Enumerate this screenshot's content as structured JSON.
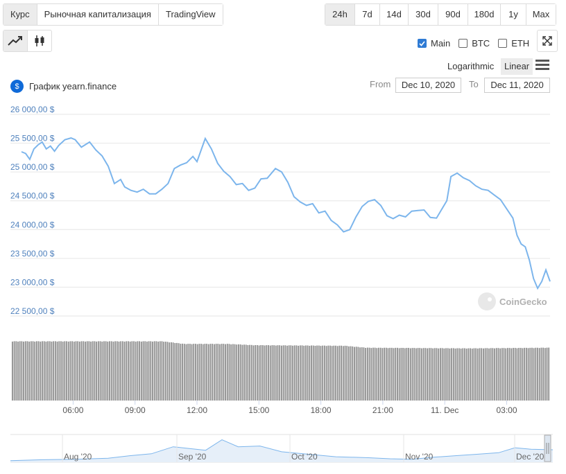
{
  "tabs": [
    "Курс",
    "Рыночная капитализация",
    "TradingView"
  ],
  "ranges": [
    "24h",
    "7d",
    "14d",
    "30d",
    "90d",
    "180d",
    "1y",
    "Max"
  ],
  "checkboxes": {
    "main": "Main",
    "btc": "BTC",
    "eth": "ETH"
  },
  "scale": {
    "log": "Logarithmic",
    "linear": "Linear"
  },
  "chart_title": "График yearn.finance",
  "logo_glyph": "$",
  "date_range": {
    "from_label": "From",
    "from": "Dec 10, 2020",
    "to_label": "To",
    "to": "Dec 11, 2020"
  },
  "watermark": "CoinGecko",
  "colors": {
    "line": "#7cb5ec",
    "grid": "#e6e6e6",
    "axis_text": "#4f81bd",
    "volume": "#8c8c8c",
    "active_bg": "#ececec",
    "check": "#2f7bd4"
  },
  "chart_data": {
    "type": "line",
    "currency_suffix": " $",
    "yticks": [
      "26 000,00 $",
      "25 500,00 $",
      "25 000,00 $",
      "24 500,00 $",
      "24 000,00 $",
      "23 500,00 $",
      "23 000,00 $",
      "22 500,00 $"
    ],
    "ylim": [
      22500,
      26000
    ],
    "xticks": [
      "06:00",
      "09:00",
      "12:00",
      "15:00",
      "18:00",
      "21:00",
      "11. Dec",
      "03:00"
    ],
    "x_start_hour": 3.5,
    "x_end_hour": 27.85,
    "price_points": [
      [
        3.5,
        25350
      ],
      [
        3.7,
        25320
      ],
      [
        3.9,
        25220
      ],
      [
        4.1,
        25400
      ],
      [
        4.3,
        25470
      ],
      [
        4.5,
        25520
      ],
      [
        4.7,
        25400
      ],
      [
        4.9,
        25450
      ],
      [
        5.1,
        25360
      ],
      [
        5.3,
        25460
      ],
      [
        5.6,
        25560
      ],
      [
        5.9,
        25590
      ],
      [
        6.1,
        25560
      ],
      [
        6.4,
        25430
      ],
      [
        6.8,
        25520
      ],
      [
        7.1,
        25380
      ],
      [
        7.4,
        25280
      ],
      [
        7.7,
        25100
      ],
      [
        8.0,
        24800
      ],
      [
        8.3,
        24870
      ],
      [
        8.5,
        24740
      ],
      [
        8.8,
        24680
      ],
      [
        9.1,
        24650
      ],
      [
        9.4,
        24700
      ],
      [
        9.7,
        24620
      ],
      [
        10.0,
        24620
      ],
      [
        10.3,
        24700
      ],
      [
        10.6,
        24800
      ],
      [
        10.9,
        25060
      ],
      [
        11.2,
        25120
      ],
      [
        11.5,
        25160
      ],
      [
        11.8,
        25270
      ],
      [
        12.0,
        25180
      ],
      [
        12.4,
        25580
      ],
      [
        12.7,
        25400
      ],
      [
        13.0,
        25150
      ],
      [
        13.3,
        25010
      ],
      [
        13.6,
        24920
      ],
      [
        13.9,
        24780
      ],
      [
        14.2,
        24800
      ],
      [
        14.5,
        24680
      ],
      [
        14.8,
        24720
      ],
      [
        15.1,
        24880
      ],
      [
        15.4,
        24890
      ],
      [
        15.8,
        25060
      ],
      [
        16.1,
        25000
      ],
      [
        16.4,
        24820
      ],
      [
        16.7,
        24570
      ],
      [
        17.0,
        24480
      ],
      [
        17.3,
        24420
      ],
      [
        17.6,
        24450
      ],
      [
        17.9,
        24290
      ],
      [
        18.2,
        24320
      ],
      [
        18.5,
        24160
      ],
      [
        18.8,
        24080
      ],
      [
        19.1,
        23960
      ],
      [
        19.4,
        24000
      ],
      [
        19.7,
        24220
      ],
      [
        20.0,
        24400
      ],
      [
        20.3,
        24490
      ],
      [
        20.6,
        24520
      ],
      [
        20.9,
        24420
      ],
      [
        21.2,
        24240
      ],
      [
        21.5,
        24190
      ],
      [
        21.8,
        24250
      ],
      [
        22.1,
        24220
      ],
      [
        22.4,
        24320
      ],
      [
        22.7,
        24330
      ],
      [
        23.0,
        24340
      ],
      [
        23.3,
        24210
      ],
      [
        23.6,
        24200
      ],
      [
        23.9,
        24380
      ],
      [
        24.1,
        24500
      ],
      [
        24.3,
        24920
      ],
      [
        24.6,
        24980
      ],
      [
        24.9,
        24900
      ],
      [
        25.2,
        24850
      ],
      [
        25.5,
        24760
      ],
      [
        25.8,
        24700
      ],
      [
        26.1,
        24680
      ],
      [
        26.4,
        24600
      ],
      [
        26.7,
        24520
      ],
      [
        27.0,
        24360
      ],
      [
        27.3,
        24200
      ],
      [
        27.5,
        23900
      ],
      [
        27.7,
        23750
      ],
      [
        27.9,
        23700
      ],
      [
        28.1,
        23470
      ],
      [
        28.3,
        23150
      ],
      [
        28.5,
        22980
      ],
      [
        28.7,
        23100
      ],
      [
        28.9,
        23300
      ],
      [
        29.1,
        23100
      ]
    ],
    "volume_profile": [
      [
        0.0,
        0.93
      ],
      [
        0.28,
        0.93
      ],
      [
        0.32,
        0.89
      ],
      [
        0.4,
        0.89
      ],
      [
        0.45,
        0.87
      ],
      [
        0.62,
        0.86
      ],
      [
        0.66,
        0.83
      ],
      [
        0.85,
        0.82
      ],
      [
        1.0,
        0.83
      ]
    ],
    "navigator": {
      "labels": [
        "Aug '20",
        "Sep '20",
        "Oct '20",
        "Nov '20",
        "Dec '20"
      ],
      "points": [
        [
          0.0,
          0.06
        ],
        [
          0.06,
          0.1
        ],
        [
          0.12,
          0.12
        ],
        [
          0.18,
          0.16
        ],
        [
          0.22,
          0.26
        ],
        [
          0.26,
          0.34
        ],
        [
          0.3,
          0.62
        ],
        [
          0.33,
          0.55
        ],
        [
          0.36,
          0.48
        ],
        [
          0.39,
          0.9
        ],
        [
          0.42,
          0.62
        ],
        [
          0.46,
          0.65
        ],
        [
          0.5,
          0.42
        ],
        [
          0.55,
          0.32
        ],
        [
          0.6,
          0.22
        ],
        [
          0.66,
          0.18
        ],
        [
          0.7,
          0.14
        ],
        [
          0.74,
          0.12
        ],
        [
          0.78,
          0.2
        ],
        [
          0.82,
          0.26
        ],
        [
          0.86,
          0.32
        ],
        [
          0.9,
          0.38
        ],
        [
          0.93,
          0.58
        ],
        [
          0.96,
          0.52
        ],
        [
          1.0,
          0.5
        ]
      ]
    }
  }
}
